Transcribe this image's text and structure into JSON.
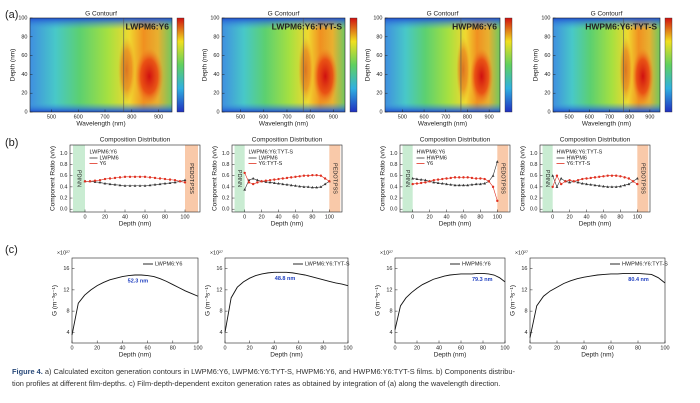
{
  "panel_labels": [
    "(a)",
    "(b)",
    "(c)"
  ],
  "caption": {
    "label": "Figure 4.",
    "lines": [
      "a) Calculated exciton generation contours in LWPM6:Y6, LWPM6:Y6:TYT-S, HWPM6:Y6, and HWPM6:Y6:TYT-S films. b) Components distribu-",
      "tion profiles at different film-depths. c) Film-depth-dependent exciton generation rates as obtained by integration of (a) along the wavelength direction."
    ]
  },
  "chart_data": [
    {
      "type": "heatmap",
      "title": "G Contourf",
      "label": "LWPM6:Y6",
      "x_label": "Wavelength (nm)",
      "y_label": "Depth (nm)",
      "xlim": [
        420,
        950
      ],
      "xticks": [
        500,
        600,
        700,
        800,
        900
      ],
      "ylim": [
        0,
        100
      ],
      "yticks": [
        0,
        20,
        40,
        60,
        80,
        100
      ],
      "vline": 770
    },
    {
      "type": "heatmap",
      "title": "G Contourf",
      "label": "LWPM6:Y6:TYT-S",
      "x_label": "Wavelength (nm)",
      "y_label": "Depth (nm)",
      "xlim": [
        420,
        950
      ],
      "xticks": [
        500,
        600,
        700,
        800,
        900
      ],
      "ylim": [
        0,
        100
      ],
      "yticks": [
        0,
        20,
        40,
        60,
        80,
        100
      ],
      "vline": 770
    },
    {
      "type": "heatmap",
      "title": "G Contourf",
      "label": "HWPM6:Y6",
      "x_label": "Wavelength (nm)",
      "y_label": "Depth (nm)",
      "xlim": [
        420,
        950
      ],
      "xticks": [
        500,
        600,
        700,
        800,
        900
      ],
      "ylim": [
        0,
        100
      ],
      "yticks": [
        0,
        20,
        40,
        60,
        80,
        100
      ],
      "vline": 770
    },
    {
      "type": "heatmap",
      "title": "G Contourf",
      "label": "HWPM6:Y6:TYT-S",
      "x_label": "Wavelength (nm)",
      "y_label": "Depth (nm)",
      "xlim": [
        420,
        950
      ],
      "xticks": [
        500,
        600,
        700,
        800,
        900
      ],
      "ylim": [
        0,
        100
      ],
      "yticks": [
        0,
        20,
        40,
        60,
        80,
        100
      ],
      "vline": 770
    },
    {
      "type": "line",
      "title": "Composition Distribution",
      "legend_title": "LWPM6:Y6",
      "x_label": "Depth (nm)",
      "y_label": "Component Ratio (v/v)",
      "xlim": [
        -15,
        115
      ],
      "xticks": [
        0,
        20,
        40,
        60,
        80,
        100
      ],
      "ylim": [
        -0.05,
        1.15
      ],
      "yticks": [
        {
          "value": 0,
          "label": "0.0"
        },
        0.2,
        0.4,
        0.6,
        0.8,
        {
          "value": 1,
          "label": "1.0"
        }
      ],
      "regions": [
        {
          "name": "PDINN",
          "x0": -12,
          "x1": 0,
          "color": "#c9ecd2"
        },
        {
          "name": "PEDOT:PSS",
          "x0": 100,
          "x1": 113,
          "color": "#f9c9a9"
        }
      ],
      "x": [
        0,
        5,
        10,
        15,
        20,
        25,
        30,
        35,
        40,
        45,
        50,
        55,
        60,
        65,
        70,
        75,
        80,
        85,
        90,
        95,
        100
      ],
      "series": [
        {
          "name": "LWPM6",
          "color": "#333333",
          "values": [
            0.5,
            0.5,
            0.49,
            0.48,
            0.46,
            0.45,
            0.44,
            0.43,
            0.42,
            0.42,
            0.42,
            0.42,
            0.42,
            0.43,
            0.44,
            0.45,
            0.46,
            0.47,
            0.48,
            0.5,
            0.52
          ]
        },
        {
          "name": "Y6",
          "color": "#e03020",
          "values": [
            0.5,
            0.5,
            0.51,
            0.52,
            0.54,
            0.55,
            0.56,
            0.57,
            0.58,
            0.58,
            0.58,
            0.58,
            0.58,
            0.57,
            0.56,
            0.55,
            0.54,
            0.53,
            0.52,
            0.5,
            0.48
          ]
        }
      ]
    },
    {
      "type": "line",
      "title": "Composition Distribution",
      "legend_title": "LWPM6:Y6:TYT-S",
      "x_label": "Depth (nm)",
      "y_label": "Component Ratio (v/v)",
      "xlim": [
        -15,
        115
      ],
      "xticks": [
        0,
        20,
        40,
        60,
        80,
        100
      ],
      "ylim": [
        -0.05,
        1.15
      ],
      "yticks": [
        {
          "value": 0,
          "label": "0.0"
        },
        0.2,
        0.4,
        0.6,
        0.8,
        {
          "value": 1,
          "label": "1.0"
        }
      ],
      "regions": [
        {
          "name": "PDINN",
          "x0": -12,
          "x1": 0,
          "color": "#c9ecd2"
        },
        {
          "name": "PEDOT:PSS",
          "x0": 100,
          "x1": 113,
          "color": "#f9c9a9"
        }
      ],
      "x": [
        0,
        5,
        10,
        15,
        20,
        25,
        30,
        35,
        40,
        45,
        50,
        55,
        60,
        65,
        70,
        75,
        80,
        85,
        90,
        95,
        100
      ],
      "series": [
        {
          "name": "LWPM6",
          "color": "#333333",
          "values": [
            0.35,
            0.52,
            0.55,
            0.52,
            0.5,
            0.49,
            0.48,
            0.47,
            0.46,
            0.45,
            0.44,
            0.43,
            0.42,
            0.41,
            0.4,
            0.4,
            0.39,
            0.39,
            0.4,
            0.45,
            0.5
          ]
        },
        {
          "name": "Y6:TYT-S",
          "color": "#e03020",
          "values": [
            0.65,
            0.48,
            0.45,
            0.48,
            0.5,
            0.51,
            0.52,
            0.53,
            0.54,
            0.55,
            0.56,
            0.57,
            0.58,
            0.59,
            0.6,
            0.6,
            0.61,
            0.61,
            0.6,
            0.55,
            0.5
          ]
        }
      ]
    },
    {
      "type": "line",
      "title": "Composition Distribution",
      "legend_title": "HWPM6:Y6",
      "x_label": "Depth (nm)",
      "y_label": "Component Ratio (v/v)",
      "xlim": [
        -15,
        115
      ],
      "xticks": [
        0,
        20,
        40,
        60,
        80,
        100
      ],
      "ylim": [
        -0.05,
        1.15
      ],
      "yticks": [
        {
          "value": 0,
          "label": "0.0"
        },
        0.2,
        0.4,
        0.6,
        0.8,
        {
          "value": 1,
          "label": "1.0"
        }
      ],
      "regions": [
        {
          "name": "PDINN",
          "x0": -12,
          "x1": 0,
          "color": "#c9ecd2"
        },
        {
          "name": "PEDOT:PSS",
          "x0": 100,
          "x1": 113,
          "color": "#f9c9a9"
        }
      ],
      "x": [
        0,
        5,
        10,
        15,
        20,
        25,
        30,
        35,
        40,
        45,
        50,
        55,
        60,
        65,
        70,
        75,
        80,
        85,
        90,
        95,
        100
      ],
      "series": [
        {
          "name": "HWPM6",
          "color": "#333333",
          "values": [
            0.55,
            0.54,
            0.53,
            0.52,
            0.5,
            0.48,
            0.47,
            0.46,
            0.45,
            0.44,
            0.43,
            0.43,
            0.43,
            0.43,
            0.44,
            0.45,
            0.45,
            0.46,
            0.5,
            0.6,
            0.85
          ]
        },
        {
          "name": "Y6",
          "color": "#e03020",
          "values": [
            0.45,
            0.46,
            0.47,
            0.48,
            0.5,
            0.52,
            0.53,
            0.54,
            0.55,
            0.56,
            0.57,
            0.57,
            0.57,
            0.57,
            0.56,
            0.55,
            0.55,
            0.54,
            0.5,
            0.4,
            0.15
          ]
        }
      ]
    },
    {
      "type": "line",
      "title": "Composition Distribution",
      "legend_title": "HWPM6:Y6:TYT-S",
      "x_label": "Depth (nm)",
      "y_label": "Component Ratio (v/v)",
      "xlim": [
        -15,
        115
      ],
      "xticks": [
        0,
        20,
        40,
        60,
        80,
        100
      ],
      "ylim": [
        -0.05,
        1.15
      ],
      "yticks": [
        {
          "value": 0,
          "label": "0.0"
        },
        0.2,
        0.4,
        0.6,
        0.8,
        {
          "value": 1,
          "label": "1.0"
        }
      ],
      "regions": [
        {
          "name": "PDINN",
          "x0": -12,
          "x1": 0,
          "color": "#c9ecd2"
        },
        {
          "name": "PEDOT:PSS",
          "x0": 100,
          "x1": 113,
          "color": "#f9c9a9"
        }
      ],
      "x": [
        0,
        5,
        10,
        15,
        20,
        25,
        30,
        35,
        40,
        45,
        50,
        55,
        60,
        65,
        70,
        75,
        80,
        85,
        90,
        95,
        100
      ],
      "series": [
        {
          "name": "HWPM6",
          "color": "#333333",
          "values": [
            0.6,
            0.4,
            0.55,
            0.5,
            0.48,
            0.5,
            0.48,
            0.46,
            0.45,
            0.44,
            0.43,
            0.42,
            0.41,
            0.4,
            0.4,
            0.4,
            0.41,
            0.43,
            0.45,
            0.5,
            0.55
          ]
        },
        {
          "name": "Y6:TYT-S",
          "color": "#e03020",
          "values": [
            0.4,
            0.6,
            0.45,
            0.5,
            0.52,
            0.5,
            0.52,
            0.54,
            0.55,
            0.56,
            0.57,
            0.58,
            0.59,
            0.6,
            0.6,
            0.6,
            0.59,
            0.57,
            0.55,
            0.5,
            0.45
          ]
        }
      ]
    },
    {
      "type": "line",
      "multiplier": "×10²⁷",
      "x_label": "Depth (nm)",
      "y_label": "G (m⁻³s⁻¹)",
      "xlim": [
        0,
        100
      ],
      "xticks": [
        0,
        20,
        40,
        60,
        80,
        100
      ],
      "ylim": [
        2,
        18
      ],
      "yticks": [
        4,
        8,
        12,
        16
      ],
      "annotations": [
        {
          "text": "52.3 nm",
          "x": 52.3,
          "y": 14.8
        }
      ],
      "x": [
        0,
        5,
        10,
        15,
        20,
        25,
        30,
        35,
        40,
        45,
        50,
        55,
        60,
        65,
        70,
        75,
        80,
        85,
        90,
        95,
        100
      ],
      "series": [
        {
          "name": "LWPM6:Y6",
          "color": "#111111",
          "values": [
            3.5,
            9.5,
            11,
            12,
            12.8,
            13.4,
            13.9,
            14.2,
            14.5,
            14.7,
            14.8,
            14.8,
            14.7,
            14.5,
            14.1,
            13.6,
            13,
            12.4,
            11.8,
            11.3,
            10.8
          ]
        }
      ]
    },
    {
      "type": "line",
      "multiplier": "×10²⁷",
      "x_label": "Depth (nm)",
      "y_label": "G (m⁻³s⁻¹)",
      "xlim": [
        0,
        100
      ],
      "xticks": [
        0,
        20,
        40,
        60,
        80,
        100
      ],
      "ylim": [
        2,
        18
      ],
      "yticks": [
        4,
        8,
        12,
        16
      ],
      "annotations": [
        {
          "text": "48.8 nm",
          "x": 48.8,
          "y": 15.3
        }
      ],
      "x": [
        0,
        5,
        10,
        15,
        20,
        25,
        30,
        35,
        40,
        45,
        50,
        55,
        60,
        65,
        70,
        75,
        80,
        85,
        90,
        95,
        100
      ],
      "series": [
        {
          "name": "LWPM6:Y6:TYT-S",
          "color": "#111111",
          "values": [
            4,
            10.5,
            12.5,
            13.5,
            14.2,
            14.7,
            15,
            15.2,
            15.3,
            15.3,
            15.3,
            15.2,
            15,
            14.8,
            14.5,
            14.2,
            13.9,
            13.6,
            13.3,
            13.1,
            12.8
          ]
        }
      ]
    },
    {
      "type": "line",
      "multiplier": "×10²⁷",
      "x_label": "Depth (nm)",
      "y_label": "G (m⁻³s⁻¹)",
      "xlim": [
        0,
        100
      ],
      "xticks": [
        0,
        20,
        40,
        60,
        80,
        100
      ],
      "ylim": [
        2,
        18
      ],
      "yticks": [
        4,
        8,
        12,
        16
      ],
      "annotations": [
        {
          "text": "79.3 nm",
          "x": 79.3,
          "y": 15.1
        }
      ],
      "x": [
        0,
        5,
        10,
        15,
        20,
        25,
        30,
        35,
        40,
        45,
        50,
        55,
        60,
        65,
        70,
        75,
        80,
        85,
        90,
        95,
        100
      ],
      "series": [
        {
          "name": "HWPM6:Y6",
          "color": "#111111",
          "values": [
            4.5,
            9,
            10.5,
            11.5,
            12.3,
            13,
            13.5,
            14,
            14.3,
            14.6,
            14.8,
            14.9,
            15,
            15,
            15,
            15.1,
            15.1,
            15,
            14.8,
            14.3,
            13.5
          ]
        }
      ]
    },
    {
      "type": "line",
      "multiplier": "×10²⁷",
      "x_label": "Depth (nm)",
      "y_label": "G (m⁻³s⁻¹)",
      "xlim": [
        0,
        100
      ],
      "xticks": [
        0,
        20,
        40,
        60,
        80,
        100
      ],
      "ylim": [
        2,
        18
      ],
      "yticks": [
        4,
        8,
        12,
        16
      ],
      "annotations": [
        {
          "text": "80.4 nm",
          "x": 80.4,
          "y": 15.1
        }
      ],
      "x": [
        0,
        5,
        10,
        15,
        20,
        25,
        30,
        35,
        40,
        45,
        50,
        55,
        60,
        65,
        70,
        75,
        80,
        85,
        90,
        95,
        100
      ],
      "series": [
        {
          "name": "HWPM6:Y6:TYT-S",
          "color": "#111111",
          "values": [
            3,
            9,
            10.8,
            11.8,
            12.5,
            13.2,
            13.7,
            14.1,
            14.4,
            14.6,
            14.8,
            14.9,
            15,
            15,
            15.1,
            15.1,
            15.1,
            15,
            14.9,
            14.3,
            13.3
          ]
        }
      ]
    }
  ]
}
